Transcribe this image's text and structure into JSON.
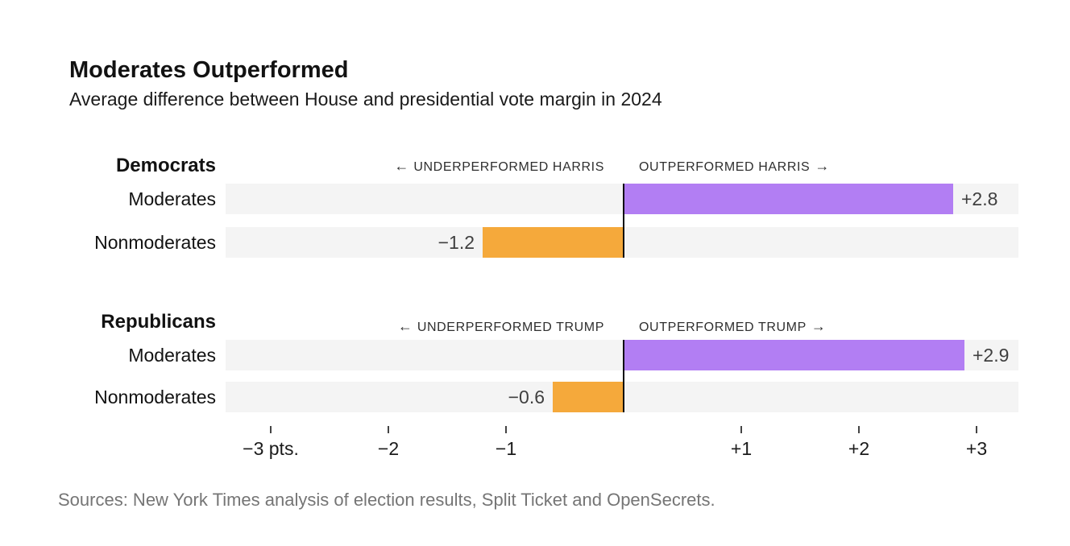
{
  "chart_data": {
    "type": "bar",
    "orientation": "horizontal",
    "title": "Moderates Outperformed",
    "subtitle": "Average difference between House and presidential vote margin in 2024",
    "unit": "percentage points",
    "xlim": [
      -3.38,
      3.36
    ],
    "grid": false,
    "axis": {
      "ticks": [
        {
          "value": -3,
          "label": "−3 pts."
        },
        {
          "value": -2,
          "label": "−2"
        },
        {
          "value": -1,
          "label": "−1"
        },
        {
          "value": 1,
          "label": "+1"
        },
        {
          "value": 2,
          "label": "+2"
        },
        {
          "value": 3,
          "label": "+3"
        }
      ]
    },
    "sections": [
      {
        "name": "Democrats",
        "left_arrow": "←",
        "left_text": "UNDERPERFORMED HARRIS",
        "right_text": "OUTPERFORMED HARRIS",
        "right_arrow": "→",
        "rows": [
          {
            "label": "Moderates",
            "value": 2.8,
            "display": "+2.8"
          },
          {
            "label": "Nonmoderates",
            "value": -1.2,
            "display": "−1.2"
          }
        ]
      },
      {
        "name": "Republicans",
        "left_arrow": "←",
        "left_text": "UNDERPERFORMED TRUMP",
        "right_text": "OUTPERFORMED TRUMP",
        "right_arrow": "→",
        "rows": [
          {
            "label": "Moderates",
            "value": 2.9,
            "display": "+2.9"
          },
          {
            "label": "Nonmoderates",
            "value": -0.6,
            "display": "−0.6"
          }
        ]
      }
    ]
  },
  "footer": {
    "sources": "Sources: New York Times analysis of election results, Split Ticket and OpenSecrets."
  },
  "colors": {
    "positive_bar": "#b27ef3",
    "negative_bar": "#f5a93b",
    "track": "#f4f4f4",
    "zero_line": "#0a0a0a",
    "value_label": "#3f3f3f",
    "source_text": "#757575"
  }
}
